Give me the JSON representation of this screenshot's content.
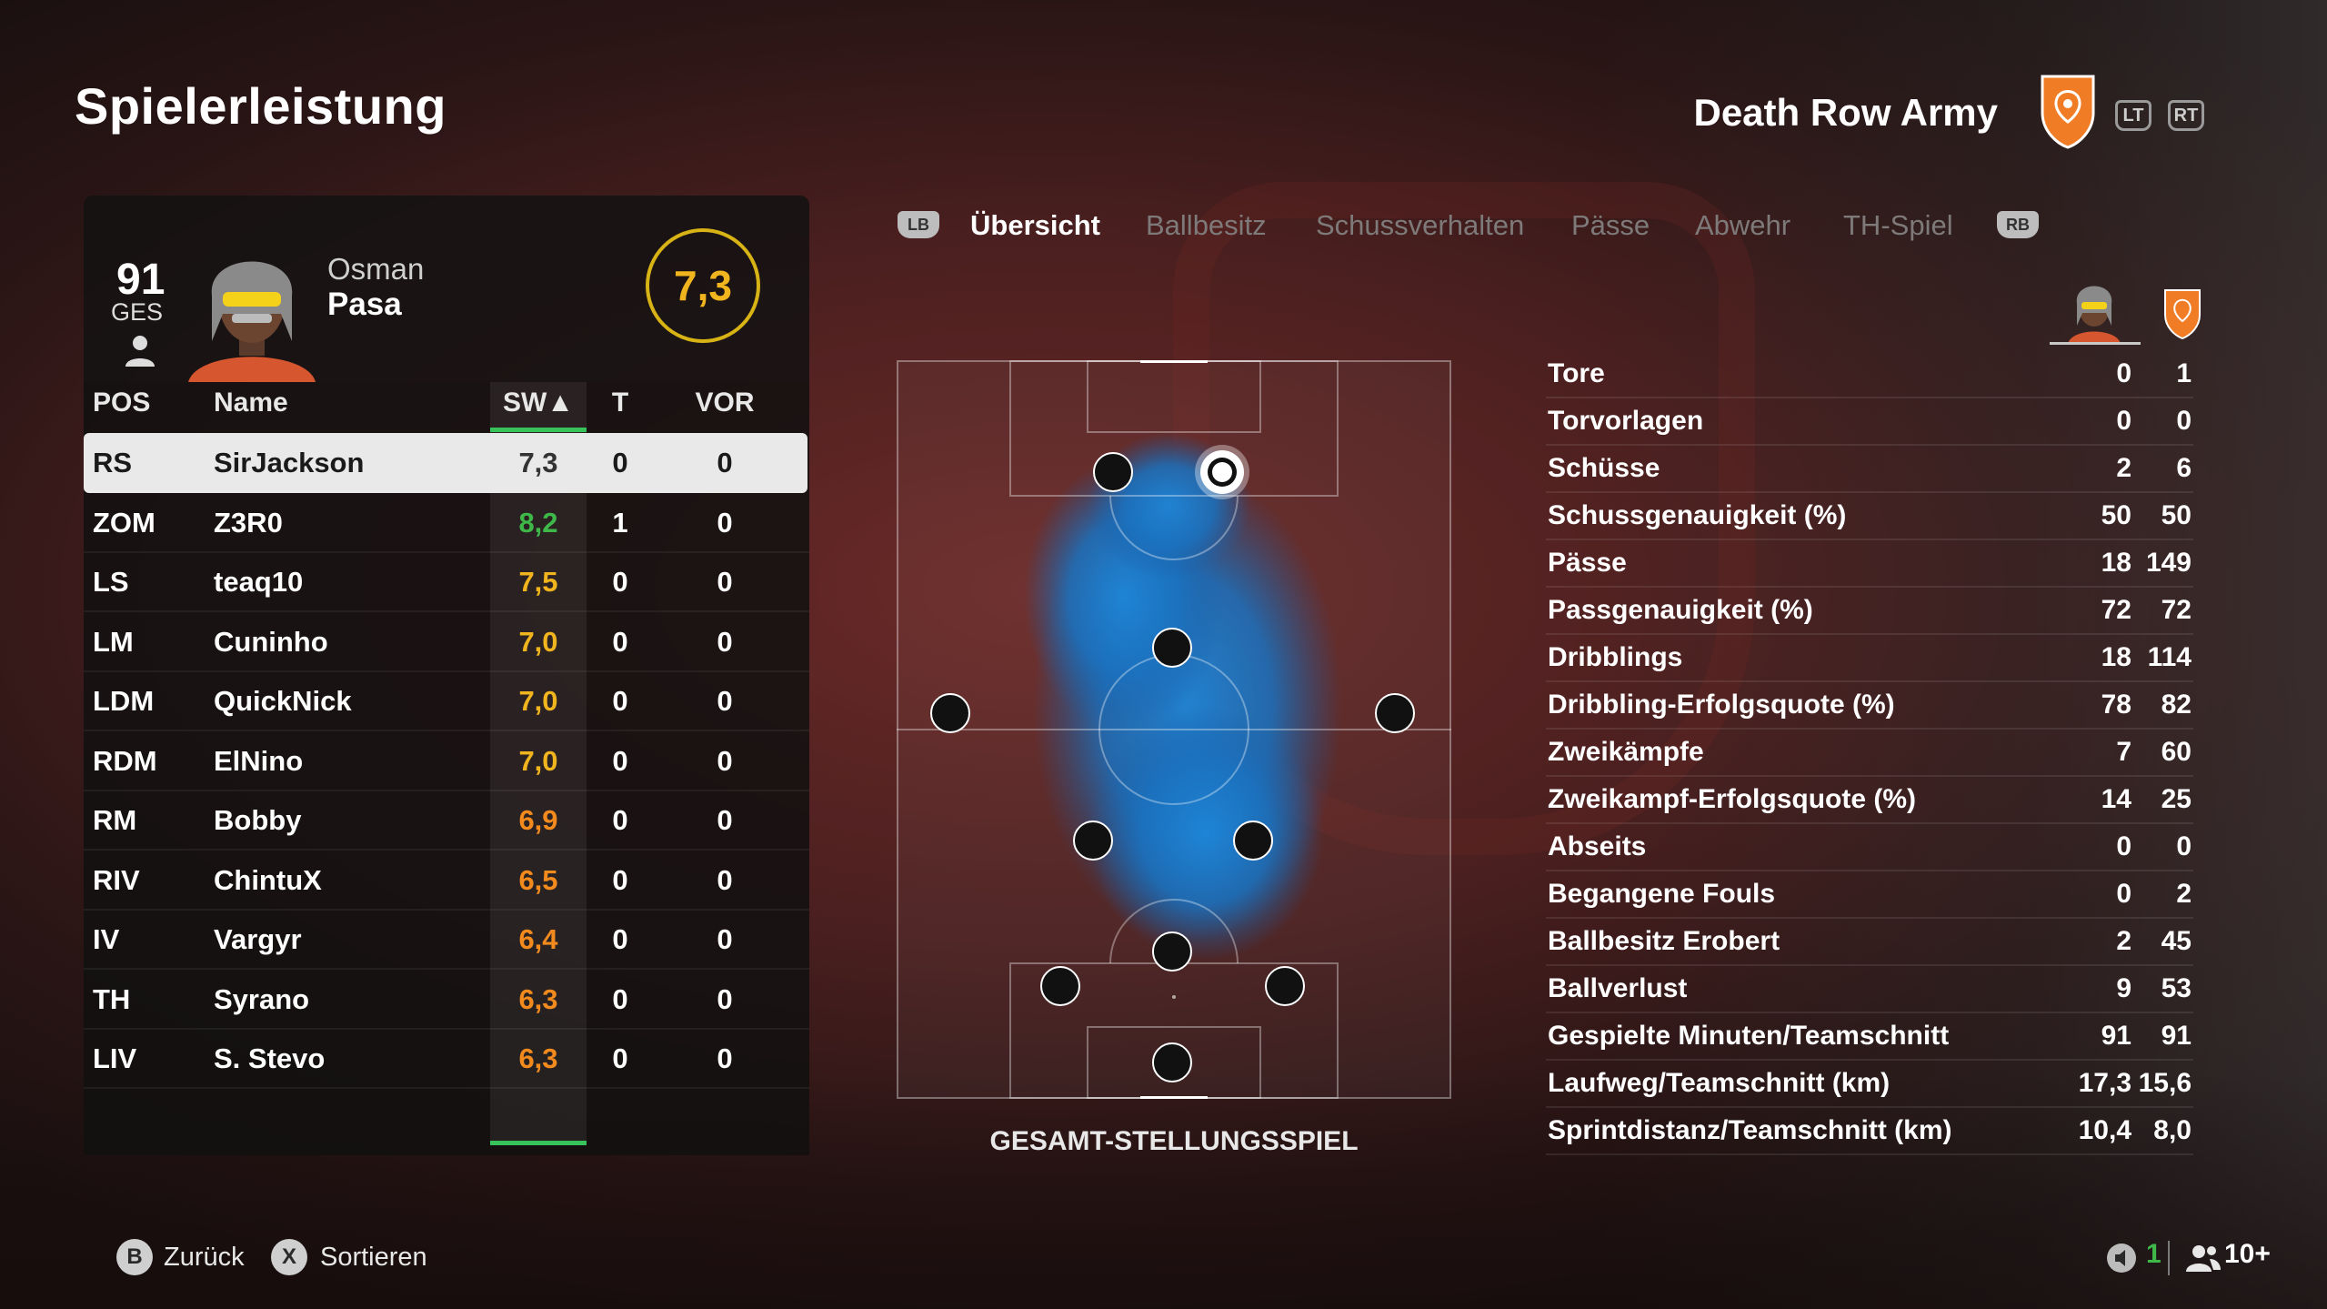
{
  "header": {
    "title": "Spielerleistung",
    "team_name": "Death Row Army",
    "lt_label": "LT",
    "rt_label": "RT"
  },
  "player": {
    "ovr": "91",
    "ovr_label": "GES",
    "first_name": "Osman",
    "last_name": "Pasa",
    "match_rating": "7,3"
  },
  "table": {
    "headers": {
      "pos": "POS",
      "name": "Name",
      "sw": "SW▲",
      "t": "T",
      "vor": "VOR"
    },
    "rows": [
      {
        "pos": "RS",
        "name": "SirJackson",
        "sw": "7,3",
        "t": "0",
        "vor": "0",
        "sw_color": "#333333"
      },
      {
        "pos": "ZOM",
        "name": "Z3R0",
        "sw": "8,2",
        "t": "1",
        "vor": "0",
        "sw_color": "#3fb84a"
      },
      {
        "pos": "LS",
        "name": "teaq10",
        "sw": "7,5",
        "t": "0",
        "vor": "0",
        "sw_color": "#f0b41e"
      },
      {
        "pos": "LM",
        "name": "Cuninho",
        "sw": "7,0",
        "t": "0",
        "vor": "0",
        "sw_color": "#f0b41e"
      },
      {
        "pos": "LDM",
        "name": "QuickNick",
        "sw": "7,0",
        "t": "0",
        "vor": "0",
        "sw_color": "#f0b41e"
      },
      {
        "pos": "RDM",
        "name": "ElNino",
        "sw": "7,0",
        "t": "0",
        "vor": "0",
        "sw_color": "#f0b41e"
      },
      {
        "pos": "RM",
        "name": "Bobby",
        "sw": "6,9",
        "t": "0",
        "vor": "0",
        "sw_color": "#f28a1e"
      },
      {
        "pos": "RIV",
        "name": "ChintuX",
        "sw": "6,5",
        "t": "0",
        "vor": "0",
        "sw_color": "#f28a1e"
      },
      {
        "pos": "IV",
        "name": "Vargyr",
        "sw": "6,4",
        "t": "0",
        "vor": "0",
        "sw_color": "#f28a1e"
      },
      {
        "pos": "TH",
        "name": "Syrano",
        "sw": "6,3",
        "t": "0",
        "vor": "0",
        "sw_color": "#f28a1e"
      },
      {
        "pos": "LIV",
        "name": "S. Stevo",
        "sw": "6,3",
        "t": "0",
        "vor": "0",
        "sw_color": "#f28a1e"
      }
    ]
  },
  "tabs": {
    "lb": "LB",
    "rb": "RB",
    "items": [
      "Übersicht",
      "Ballbesitz",
      "Schussverhalten",
      "Pässe",
      "Abwehr",
      "TH-Spiel"
    ],
    "active": "Übersicht"
  },
  "pitch": {
    "caption": "GESAMT-STELLUNGSSPIEL"
  },
  "stats": [
    {
      "label": "Tore",
      "player": "0",
      "team": "1"
    },
    {
      "label": "Torvorlagen",
      "player": "0",
      "team": "0"
    },
    {
      "label": "Schüsse",
      "player": "2",
      "team": "6"
    },
    {
      "label": "Schussgenauigkeit (%)",
      "player": "50",
      "team": "50"
    },
    {
      "label": "Pässe",
      "player": "18",
      "team": "149"
    },
    {
      "label": "Passgenauigkeit (%)",
      "player": "72",
      "team": "72"
    },
    {
      "label": "Dribblings",
      "player": "18",
      "team": "114"
    },
    {
      "label": "Dribbling-Erfolgsquote (%)",
      "player": "78",
      "team": "82"
    },
    {
      "label": "Zweikämpfe",
      "player": "7",
      "team": "60"
    },
    {
      "label": "Zweikampf-Erfolgsquote (%)",
      "player": "14",
      "team": "25"
    },
    {
      "label": "Abseits",
      "player": "0",
      "team": "0"
    },
    {
      "label": "Begangene Fouls",
      "player": "0",
      "team": "2"
    },
    {
      "label": "Ballbesitz Erobert",
      "player": "2",
      "team": "45"
    },
    {
      "label": "Ballverlust",
      "player": "9",
      "team": "53"
    },
    {
      "label": "Gespielte Minuten/Teamschnitt",
      "player": "91",
      "team": "91"
    },
    {
      "label": "Laufweg/Teamschnitt (km)",
      "player": "17,3",
      "team": "15,6"
    },
    {
      "label": "Sprintdistanz/Teamschnitt (km)",
      "player": "10,4",
      "team": "8,0"
    }
  ],
  "footer": {
    "back_button": "B",
    "back_label": "Zurück",
    "sort_button": "X",
    "sort_label": "Sortieren",
    "count_green": "1",
    "players_online": "10+"
  },
  "colors": {
    "accent_green": "#37c35a",
    "rating_gold": "#f0b41e",
    "rating_orange": "#f28a1e",
    "heatmap_blue": "#1e78c8"
  }
}
